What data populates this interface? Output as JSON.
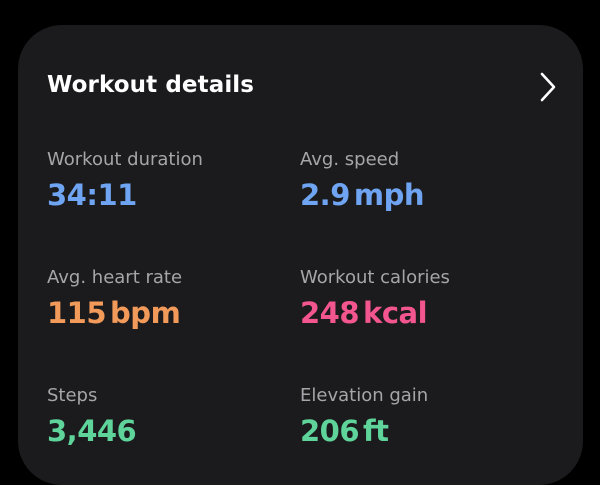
{
  "card": {
    "title": "Workout details",
    "chevron_icon": "chevron-right-icon"
  },
  "colors": {
    "duration": "#6ea4f2",
    "speed": "#6ea4f2",
    "heart_rate": "#f19a5a",
    "calories": "#f3568f",
    "steps": "#5fd49a",
    "elevation": "#5fd49a"
  },
  "stats": {
    "duration": {
      "label": "Workout duration",
      "value": "34:11",
      "unit": ""
    },
    "speed": {
      "label": "Avg. speed",
      "value": "2.9",
      "unit": "mph"
    },
    "heart_rate": {
      "label": "Avg. heart rate",
      "value": "115",
      "unit": "bpm"
    },
    "calories": {
      "label": "Workout calories",
      "value": "248",
      "unit": "kcal"
    },
    "steps": {
      "label": "Steps",
      "value": "3,446",
      "unit": ""
    },
    "elevation": {
      "label": "Elevation gain",
      "value": "206",
      "unit": "ft"
    }
  }
}
